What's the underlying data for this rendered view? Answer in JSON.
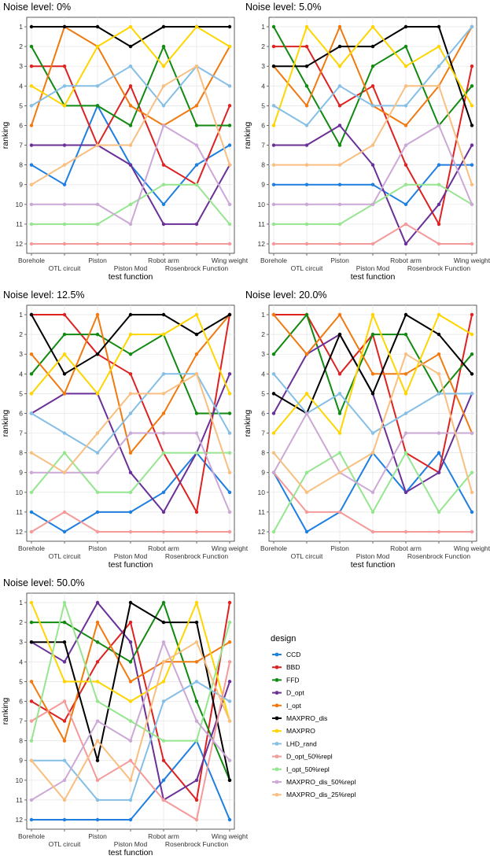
{
  "chart_data": {
    "type": "line",
    "shared": {
      "categories": [
        "Borehole",
        "OTL circuit",
        "Piston",
        "Piston Mod",
        "Robot arm",
        "Rosenbrock Function",
        "Wing weight"
      ],
      "xlabel": "test function",
      "ylabel": "ranking",
      "y_ticks": [
        1,
        2,
        3,
        4,
        5,
        6,
        7,
        8,
        9,
        10,
        11,
        12
      ],
      "ylim": [
        12,
        1
      ]
    },
    "legend": {
      "title": "design",
      "placement": "right",
      "entries": [
        {
          "name": "CCD",
          "color": "#1f7fe0"
        },
        {
          "name": "BBD",
          "color": "#dd2222"
        },
        {
          "name": "FFD",
          "color": "#128a12"
        },
        {
          "name": "D_opt",
          "color": "#6a3098"
        },
        {
          "name": "I_opt",
          "color": "#f07a10"
        },
        {
          "name": "MAXPRO_dis",
          "color": "#000000"
        },
        {
          "name": "MAXPRO",
          "color": "#ffd500"
        },
        {
          "name": "LHD_rand",
          "color": "#86bfe6"
        },
        {
          "name": "D_opt_50%repl",
          "color": "#f59a9a"
        },
        {
          "name": "I_opt_50%repl",
          "color": "#96e690"
        },
        {
          "name": "MAXPRO_dis_50%repl",
          "color": "#cca8d6"
        },
        {
          "name": "MAXPRO_dis_25%repl",
          "color": "#f8bf80"
        }
      ]
    },
    "panels": [
      {
        "title": "Noise level: 0%",
        "series": [
          {
            "name": "CCD",
            "values": [
              8,
              9,
              5,
              8,
              10,
              8,
              7
            ]
          },
          {
            "name": "BBD",
            "values": [
              3,
              3,
              7,
              4,
              8,
              9,
              5
            ]
          },
          {
            "name": "FFD",
            "values": [
              2,
              5,
              5,
              6,
              2,
              6,
              6
            ]
          },
          {
            "name": "D_opt",
            "values": [
              7,
              7,
              7,
              8,
              11,
              11,
              8
            ]
          },
          {
            "name": "I_opt",
            "values": [
              6,
              1,
              2,
              5,
              6,
              5,
              2
            ]
          },
          {
            "name": "MAXPRO_dis",
            "values": [
              1,
              1,
              1,
              2,
              1,
              1,
              1
            ]
          },
          {
            "name": "MAXPRO",
            "values": [
              4,
              5,
              2,
              1,
              3,
              1,
              2
            ]
          },
          {
            "name": "LHD_rand",
            "values": [
              5,
              4,
              4,
              3,
              5,
              3,
              4
            ]
          },
          {
            "name": "D_opt_50%repl",
            "values": [
              12,
              12,
              12,
              12,
              12,
              12,
              12
            ]
          },
          {
            "name": "I_opt_50%repl",
            "values": [
              11,
              11,
              11,
              10,
              9,
              9,
              11
            ]
          },
          {
            "name": "MAXPRO_dis_50%repl",
            "values": [
              10,
              10,
              10,
              11,
              6,
              7,
              10
            ]
          },
          {
            "name": "MAXPRO_dis_25%repl",
            "values": [
              9,
              8,
              7,
              7,
              4,
              3,
              8
            ]
          }
        ]
      },
      {
        "title": "Noise level: 5.0%",
        "series": [
          {
            "name": "CCD",
            "values": [
              9,
              9,
              9,
              9,
              10,
              8,
              8
            ]
          },
          {
            "name": "BBD",
            "values": [
              2,
              2,
              5,
              4,
              8,
              11,
              3
            ]
          },
          {
            "name": "FFD",
            "values": [
              1,
              4,
              7,
              3,
              2,
              6,
              4
            ]
          },
          {
            "name": "D_opt",
            "values": [
              7,
              7,
              6,
              8,
              12,
              10,
              7
            ]
          },
          {
            "name": "I_opt",
            "values": [
              3,
              5,
              1,
              5,
              6,
              4,
              1
            ]
          },
          {
            "name": "MAXPRO_dis",
            "values": [
              3,
              3,
              2,
              2,
              1,
              1,
              6
            ]
          },
          {
            "name": "MAXPRO",
            "values": [
              6,
              1,
              3,
              1,
              3,
              2,
              5
            ]
          },
          {
            "name": "LHD_rand",
            "values": [
              5,
              6,
              4,
              5,
              5,
              3,
              1
            ]
          },
          {
            "name": "D_opt_50%repl",
            "values": [
              12,
              12,
              12,
              12,
              11,
              12,
              12
            ]
          },
          {
            "name": "I_opt_50%repl",
            "values": [
              11,
              11,
              11,
              10,
              9,
              9,
              10
            ]
          },
          {
            "name": "MAXPRO_dis_50%repl",
            "values": [
              10,
              10,
              10,
              10,
              7,
              6,
              10
            ]
          },
          {
            "name": "MAXPRO_dis_25%repl",
            "values": [
              8,
              8,
              8,
              7,
              4,
              4,
              9
            ]
          }
        ]
      },
      {
        "title": "Noise level: 12.5%",
        "series": [
          {
            "name": "CCD",
            "values": [
              11,
              12,
              11,
              11,
              10,
              8,
              10
            ]
          },
          {
            "name": "BBD",
            "values": [
              1,
              1,
              3,
              4,
              8,
              11,
              1
            ]
          },
          {
            "name": "FFD",
            "values": [
              4,
              2,
              2,
              3,
              2,
              6,
              6
            ]
          },
          {
            "name": "D_opt",
            "values": [
              6,
              5,
              5,
              9,
              11,
              8,
              4
            ]
          },
          {
            "name": "I_opt",
            "values": [
              3,
              5,
              1,
              8,
              6,
              3,
              1
            ]
          },
          {
            "name": "MAXPRO_dis",
            "values": [
              1,
              4,
              3,
              1,
              1,
              2,
              1
            ]
          },
          {
            "name": "MAXPRO",
            "values": [
              5,
              3,
              5,
              2,
              2,
              1,
              5
            ]
          },
          {
            "name": "LHD_rand",
            "values": [
              6,
              7,
              8,
              6,
              4,
              4,
              7
            ]
          },
          {
            "name": "D_opt_50%repl",
            "values": [
              12,
              11,
              12,
              12,
              12,
              12,
              12
            ]
          },
          {
            "name": "I_opt_50%repl",
            "values": [
              10,
              8,
              10,
              10,
              8,
              8,
              8
            ]
          },
          {
            "name": "MAXPRO_dis_50%repl",
            "values": [
              9,
              9,
              9,
              7,
              7,
              7,
              11
            ]
          },
          {
            "name": "MAXPRO_dis_25%repl",
            "values": [
              8,
              9,
              7,
              5,
              5,
              4,
              9
            ]
          }
        ]
      },
      {
        "title": "Noise level: 20.0%",
        "series": [
          {
            "name": "CCD",
            "values": [
              9,
              12,
              11,
              8,
              10,
              8,
              11
            ]
          },
          {
            "name": "BBD",
            "values": [
              1,
              1,
              4,
              2,
              8,
              9,
              1
            ]
          },
          {
            "name": "FFD",
            "values": [
              3,
              1,
              6,
              2,
              2,
              5,
              3
            ]
          },
          {
            "name": "D_opt",
            "values": [
              6,
              3,
              2,
              5,
              10,
              9,
              5
            ]
          },
          {
            "name": "I_opt",
            "values": [
              1,
              3,
              1,
              4,
              4,
              3,
              7
            ]
          },
          {
            "name": "MAXPRO_dis",
            "values": [
              5,
              6,
              2,
              5,
              1,
              2,
              4
            ]
          },
          {
            "name": "MAXPRO",
            "values": [
              7,
              5,
              7,
              1,
              5,
              1,
              2
            ]
          },
          {
            "name": "LHD_rand",
            "values": [
              4,
              6,
              5,
              7,
              6,
              5,
              5
            ]
          },
          {
            "name": "D_opt_50%repl",
            "values": [
              9,
              11,
              11,
              12,
              12,
              12,
              12
            ]
          },
          {
            "name": "I_opt_50%repl",
            "values": [
              12,
              9,
              8,
              11,
              8,
              11,
              9
            ]
          },
          {
            "name": "MAXPRO_dis_50%repl",
            "values": [
              9,
              6,
              9,
              10,
              7,
              7,
              7
            ]
          },
          {
            "name": "MAXPRO_dis_25%repl",
            "values": [
              8,
              10,
              9,
              8,
              3,
              4,
              10
            ]
          }
        ]
      },
      {
        "title": "Noise level: 50.0%",
        "series": [
          {
            "name": "CCD",
            "values": [
              12,
              12,
              12,
              12,
              10,
              8,
              12
            ]
          },
          {
            "name": "BBD",
            "values": [
              6,
              7,
              4,
              2,
              9,
              11,
              1
            ]
          },
          {
            "name": "FFD",
            "values": [
              2,
              2,
              3,
              4,
              1,
              6,
              10
            ]
          },
          {
            "name": "D_opt",
            "values": [
              3,
              4,
              1,
              3,
              11,
              10,
              5
            ]
          },
          {
            "name": "I_opt",
            "values": [
              5,
              8,
              2,
              5,
              4,
              4,
              3
            ]
          },
          {
            "name": "MAXPRO_dis",
            "values": [
              3,
              3,
              9,
              1,
              2,
              2,
              10
            ]
          },
          {
            "name": "MAXPRO",
            "values": [
              1,
              5,
              5,
              6,
              5,
              1,
              7
            ]
          },
          {
            "name": "LHD_rand",
            "values": [
              9,
              9,
              11,
              11,
              6,
              5,
              6
            ]
          },
          {
            "name": "D_opt_50%repl",
            "values": [
              7,
              6,
              10,
              9,
              11,
              12,
              4
            ]
          },
          {
            "name": "I_opt_50%repl",
            "values": [
              8,
              1,
              6,
              7,
              8,
              8,
              2
            ]
          },
          {
            "name": "MAXPRO_dis_50%repl",
            "values": [
              11,
              10,
              7,
              8,
              3,
              7,
              9
            ]
          },
          {
            "name": "MAXPRO_dis_25%repl",
            "values": [
              9,
              11,
              8,
              10,
              4,
              3,
              7
            ]
          }
        ]
      }
    ]
  }
}
